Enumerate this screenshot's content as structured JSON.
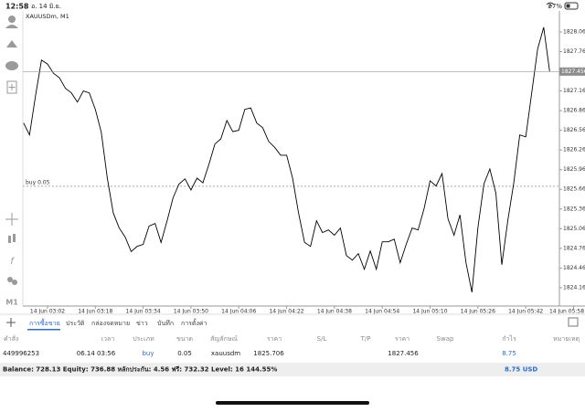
{
  "status_bar": {
    "time": "12:58",
    "date": "อ. 14 มิ.ย.",
    "battery": "27%"
  },
  "chart_data": {
    "type": "line",
    "title": "XAUUSDm, M1",
    "color": "#000000",
    "values": [
      1826.67,
      1826.49,
      1827.09,
      1827.63,
      1827.57,
      1827.43,
      1827.36,
      1827.2,
      1827.13,
      1826.99,
      1827.16,
      1827.13,
      1826.88,
      1826.53,
      1825.83,
      1825.3,
      1825.07,
      1824.93,
      1824.71,
      1824.79,
      1824.82,
      1825.1,
      1825.14,
      1824.85,
      1825.18,
      1825.53,
      1825.74,
      1825.82,
      1825.65,
      1825.83,
      1825.76,
      1826.04,
      1826.35,
      1826.43,
      1826.71,
      1826.54,
      1826.56,
      1826.88,
      1826.9,
      1826.67,
      1826.6,
      1826.39,
      1826.3,
      1826.18,
      1826.18,
      1825.83,
      1825.3,
      1824.85,
      1824.79,
      1825.18,
      1825.0,
      1825.04,
      1824.96,
      1825.07,
      1824.65,
      1824.58,
      1824.68,
      1824.44,
      1824.72,
      1824.44,
      1824.86,
      1824.86,
      1824.9,
      1824.54,
      1824.82,
      1825.07,
      1825.04,
      1825.37,
      1825.79,
      1825.71,
      1825.9,
      1825.21,
      1824.96,
      1825.27,
      1824.54,
      1824.09,
      1825.07,
      1825.74,
      1825.97,
      1825.6,
      1824.51,
      1825.18,
      1825.76,
      1826.49,
      1826.46,
      1827.13,
      1827.8,
      1828.13,
      1827.46
    ],
    "xlim": [
      0,
      90
    ],
    "ylim": [
      1823.88,
      1828.38
    ],
    "xticks": [
      {
        "value": 4,
        "label": "14 Jun 03:02"
      },
      {
        "value": 12,
        "label": "14 Jun 03:18"
      },
      {
        "value": 20,
        "label": "14 Jun 03:34"
      },
      {
        "value": 28,
        "label": "14 Jun 03:50"
      },
      {
        "value": 36,
        "label": "14 Jun 04:06"
      },
      {
        "value": 44,
        "label": "14 Jun 04:22"
      },
      {
        "value": 52,
        "label": "14 Jun 04:38"
      },
      {
        "value": 60,
        "label": "14 Jun 04:54"
      },
      {
        "value": 68,
        "label": "14 Jun 05:10"
      },
      {
        "value": 76,
        "label": "14 Jun 05:26"
      },
      {
        "value": 84,
        "label": "14 Jun 05:42"
      },
      {
        "value": 92,
        "label": "14 Jun 05:58"
      }
    ],
    "yticks": [
      {
        "value": 1828.06,
        "label": "1828.060"
      },
      {
        "value": 1827.76,
        "label": "1827.760"
      },
      {
        "value": 1827.16,
        "label": "1827.160"
      },
      {
        "value": 1826.86,
        "label": "1826.860"
      },
      {
        "value": 1826.56,
        "label": "1826.560"
      },
      {
        "value": 1826.26,
        "label": "1826.260"
      },
      {
        "value": 1825.96,
        "label": "1825.960"
      },
      {
        "value": 1825.66,
        "label": "1825.660"
      },
      {
        "value": 1825.36,
        "label": "1825.360"
      },
      {
        "value": 1825.06,
        "label": "1825.060"
      },
      {
        "value": 1824.76,
        "label": "1824.760"
      },
      {
        "value": 1824.46,
        "label": "1824.460"
      },
      {
        "value": 1824.16,
        "label": "1824.160"
      }
    ],
    "current_price": 1827.456,
    "order_line": {
      "label": "buy 0.05",
      "value": 1825.706
    }
  },
  "toolbar": {
    "timeframe": "M1"
  },
  "tabs": [
    "การซื้อขาย",
    "ประวัติ",
    "กล่องจดหมาย",
    "ข่าว",
    "บันทึก",
    "การตั้งค่า"
  ],
  "table": {
    "columns": [
      "คำสั่ง",
      "เวลา",
      "ประเภท",
      "ขนาด",
      "สัญลักษณ์",
      "ราคา",
      "S/L",
      "T/P",
      "ราคา",
      "Swap",
      "กำไร",
      "หมายเหตุ"
    ],
    "row": {
      "order": "449996253",
      "time": "06.14 03:56",
      "type": "buy",
      "volume": "0.05",
      "symbol": "xauusdm",
      "open_price": "1825.706",
      "price": "1827.456",
      "profit": "8.75"
    }
  },
  "footer": {
    "balance": "Balance: 728.13 Equity: 736.88 หลักประกัน: 4.56 ฟรี: 732.32 Level: 16 144.55%",
    "total": "8.75 USD"
  }
}
